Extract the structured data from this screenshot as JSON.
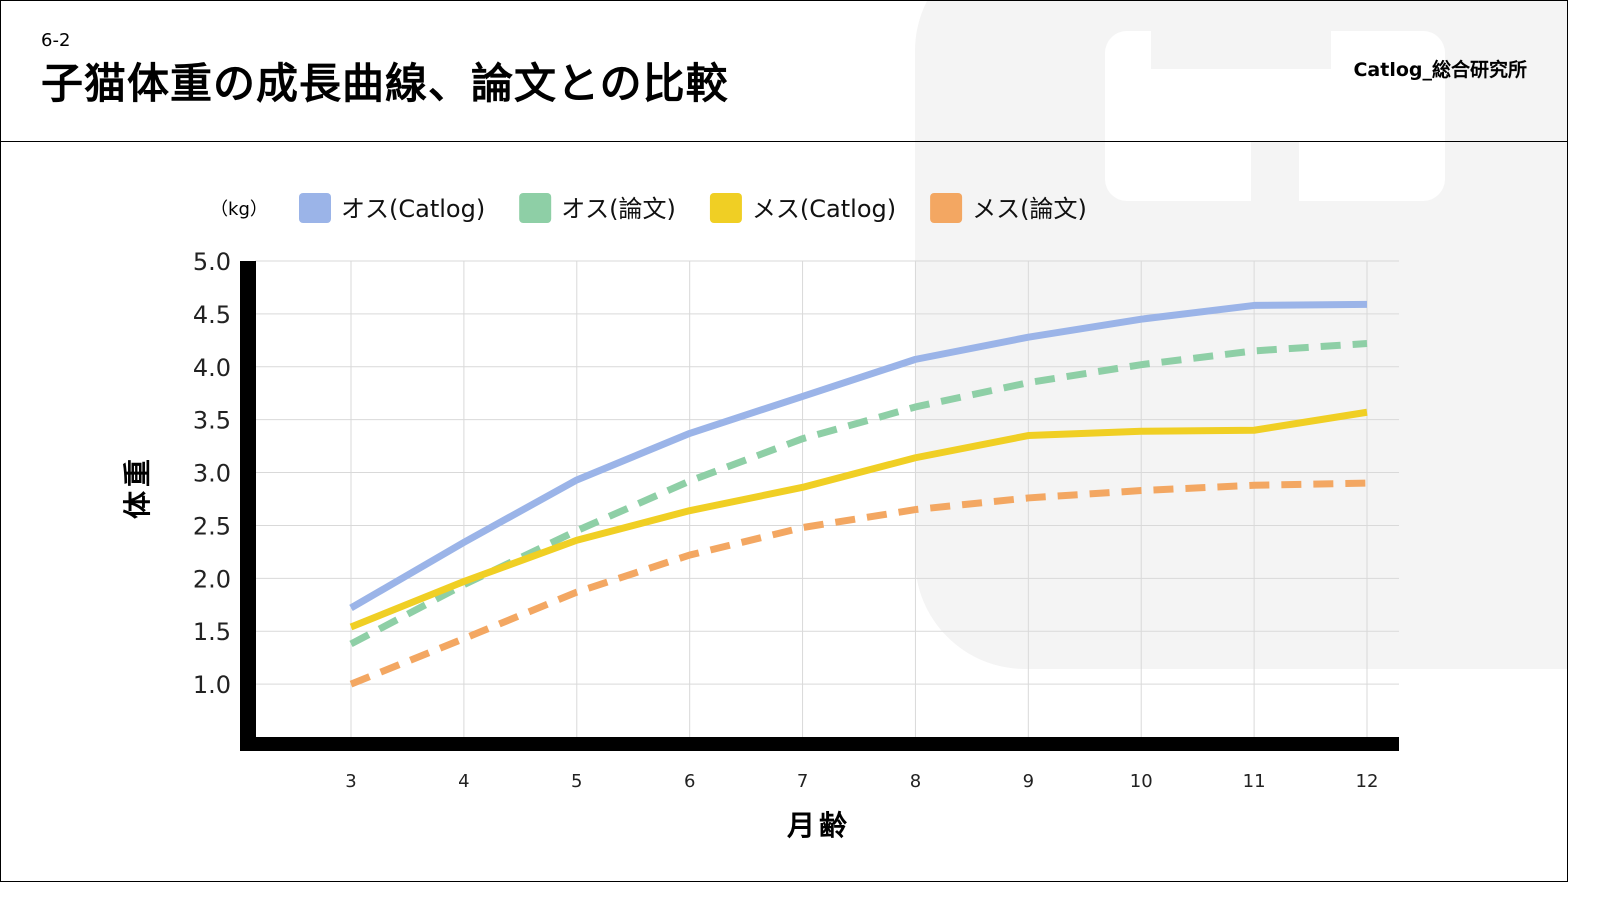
{
  "header": {
    "section_number": "6-2",
    "title": "子猫体重の成長曲線、論文との比較",
    "brand": "Catlog_総合研究所"
  },
  "chart_data": {
    "type": "line",
    "unit_label": "（kg）",
    "xlabel": "月齢",
    "ylabel": "体重",
    "x": [
      3,
      4,
      5,
      6,
      7,
      8,
      9,
      10,
      11,
      12
    ],
    "ylim": [
      0.5,
      5.0
    ],
    "yticks": [
      "1.0",
      "1.5",
      "2.0",
      "2.5",
      "3.0",
      "3.5",
      "4.0",
      "4.5",
      "5.0"
    ],
    "grid": true,
    "legend_position": "top",
    "series": [
      {
        "name": "オス(Catlog)",
        "color": "#9bb4e8",
        "dashed": false,
        "values": [
          1.72,
          2.34,
          2.93,
          3.37,
          3.72,
          4.07,
          4.28,
          4.45,
          4.58,
          4.59
        ]
      },
      {
        "name": "オス(論文)",
        "color": "#8ecfa6",
        "dashed": true,
        "values": [
          1.38,
          1.94,
          2.45,
          2.92,
          3.32,
          3.62,
          3.85,
          4.02,
          4.15,
          4.22
        ]
      },
      {
        "name": "メス(Catlog)",
        "color": "#f0cf24",
        "dashed": false,
        "values": [
          1.54,
          1.97,
          2.36,
          2.64,
          2.86,
          3.14,
          3.35,
          3.39,
          3.4,
          3.57
        ]
      },
      {
        "name": "メス(論文)",
        "color": "#f3a762",
        "dashed": true,
        "values": [
          1.0,
          1.43,
          1.87,
          2.22,
          2.48,
          2.65,
          2.76,
          2.83,
          2.88,
          2.9
        ]
      }
    ]
  }
}
